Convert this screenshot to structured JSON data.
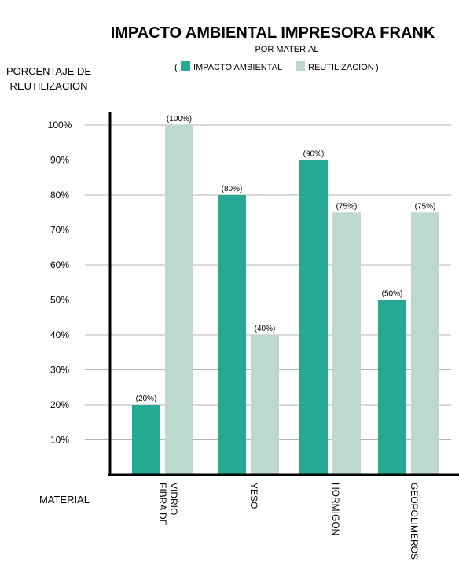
{
  "chart_data": {
    "type": "bar",
    "title": "IMPACTO AMBIENTAL IMPRESORA FRANK",
    "subtitle": "POR MATERIAL",
    "legend_open": "(",
    "legend_close": ")",
    "ylabel_line1": "PORCENTAJE DE",
    "ylabel_line2": "REUTILIZACION",
    "xlabel": "MATERIAL",
    "categories": [
      [
        "FIBRA DE",
        "VIDRIO"
      ],
      [
        "YESO"
      ],
      [
        "HORMIGON"
      ],
      [
        "GEOPOLIMEROS"
      ]
    ],
    "series": [
      {
        "name": "IMPACTO AMBIENTAL",
        "color": "#26a993",
        "values": [
          20,
          80,
          90,
          50
        ],
        "labels": [
          "(20%)",
          "(80%)",
          "(90%)",
          "(50%)"
        ]
      },
      {
        "name": "REUTILIZACION",
        "color": "#bdd9cf",
        "values": [
          100,
          40,
          75,
          75
        ],
        "labels": [
          "(100%)",
          "(40%)",
          "(75%)",
          "(75%)"
        ]
      }
    ],
    "yticks": [
      10,
      20,
      30,
      40,
      50,
      60,
      70,
      80,
      90,
      100
    ],
    "ytick_labels": [
      "10%",
      "20%",
      "30%",
      "40%",
      "50%",
      "60%",
      "70%",
      "80%",
      "90%",
      "100%"
    ],
    "ylim": [
      0,
      100
    ],
    "grid": true,
    "legend_position": "top-center"
  }
}
